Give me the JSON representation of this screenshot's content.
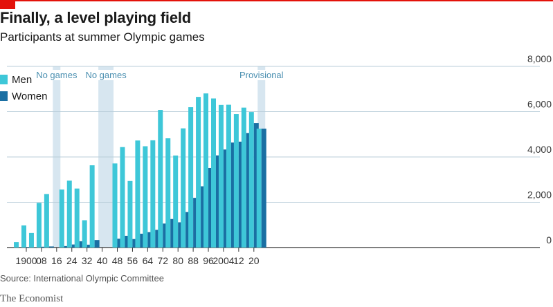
{
  "title": "Finally, a level playing field",
  "subtitle": "Participants at summer Olympic games",
  "source": "Source: International Olympic Committee",
  "brand": "The Economist",
  "colors": {
    "men": "#3ec7d8",
    "women": "#1a6fa3",
    "shade": "#d7e6f0",
    "accent": "#e3120b"
  },
  "chart_data": {
    "type": "bar",
    "title": "Finally, a level playing field",
    "subtitle": "Participants at summer Olympic games",
    "ylim": [
      0,
      8000
    ],
    "yticks": [
      0,
      2000,
      4000,
      6000,
      8000
    ],
    "ytick_labels": [
      "0",
      "2,000",
      "4,000",
      "6,000",
      "8,000"
    ],
    "xtick_labels": [
      {
        "year": 1900,
        "label": "1900"
      },
      {
        "year": 1908,
        "label": "08"
      },
      {
        "year": 1916,
        "label": "16"
      },
      {
        "year": 1924,
        "label": "24"
      },
      {
        "year": 1932,
        "label": "32"
      },
      {
        "year": 1940,
        "label": "40"
      },
      {
        "year": 1948,
        "label": "48"
      },
      {
        "year": 1956,
        "label": "56"
      },
      {
        "year": 1964,
        "label": "64"
      },
      {
        "year": 1972,
        "label": "72"
      },
      {
        "year": 1980,
        "label": "80"
      },
      {
        "year": 1988,
        "label": "88"
      },
      {
        "year": 1996,
        "label": "96"
      },
      {
        "year": 2004,
        "label": "2004"
      },
      {
        "year": 2012,
        "label": "12"
      },
      {
        "year": 2020,
        "label": "20"
      }
    ],
    "legend": [
      "Men",
      "Women"
    ],
    "legend_position": "top-left",
    "grid": true,
    "categories": [
      1896,
      1900,
      1904,
      1908,
      1912,
      1920,
      1924,
      1928,
      1932,
      1936,
      1948,
      1952,
      1956,
      1960,
      1964,
      1968,
      1972,
      1976,
      1980,
      1984,
      1988,
      1992,
      1996,
      2000,
      2004,
      2008,
      2012,
      2016,
      2020,
      2024
    ],
    "series": [
      {
        "name": "Men",
        "values": [
          241,
          975,
          645,
          1971,
          2359,
          2561,
          2954,
          2606,
          1206,
          3632,
          3714,
          4436,
          2938,
          4727,
          4473,
          4735,
          6075,
          4824,
          4064,
          5263,
          6197,
          6652,
          6806,
          6582,
          6296,
          6305,
          5892,
          6179,
          5982,
          5250
        ]
      },
      {
        "name": "Women",
        "values": [
          0,
          22,
          6,
          37,
          48,
          65,
          135,
          277,
          126,
          331,
          390,
          519,
          376,
          611,
          678,
          781,
          1059,
          1260,
          1115,
          1566,
          2194,
          2704,
          3512,
          4069,
          4329,
          4637,
          4676,
          5059,
          5494,
          5250
        ]
      }
    ],
    "annotations": [
      {
        "label": "No games",
        "from": 1914,
        "to": 1918
      },
      {
        "label": "No games",
        "from": 1938,
        "to": 1946
      },
      {
        "label": "Provisional",
        "from": 2022,
        "to": 2026
      }
    ]
  }
}
